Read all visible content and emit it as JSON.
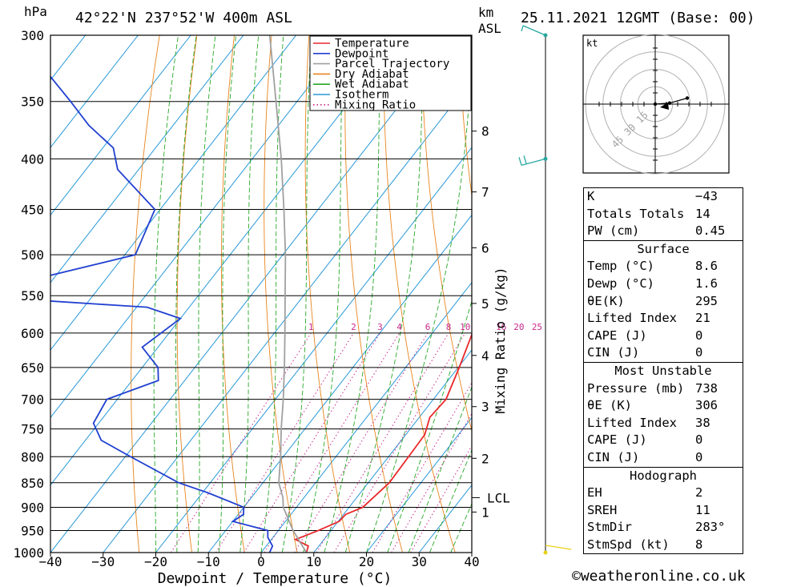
{
  "header": {
    "pressure_unit": "hPa",
    "location": "42°22'N  237°52'W  400m  ASL",
    "height_unit_km": "km",
    "height_unit_asl": "ASL",
    "datetime": "25.11.2021  12GMT  (Base: 00)"
  },
  "chart_data": {
    "type": "line",
    "title": "42°22'N  237°52'W  400m  ASL",
    "xlabel": "Dewpoint / Temperature (°C)",
    "ylabel": "hPa",
    "right_label": "Mixing Ratio (g/kg)",
    "xlim": [
      -40,
      40
    ],
    "ylim": [
      1000,
      300
    ],
    "x_ticks": [
      "-40",
      "-30",
      "-20",
      "-10",
      "0",
      "10",
      "20",
      "30",
      "40"
    ],
    "pressure_ticks": [
      "300",
      "350",
      "400",
      "450",
      "500",
      "550",
      "600",
      "650",
      "700",
      "750",
      "800",
      "850",
      "900",
      "950",
      "1000"
    ],
    "km_ticks": [
      {
        "p": 375,
        "label": "8"
      },
      {
        "p": 432,
        "label": "7"
      },
      {
        "p": 492,
        "label": "6"
      },
      {
        "p": 560,
        "label": "5"
      },
      {
        "p": 632,
        "label": "4"
      },
      {
        "p": 712,
        "label": "3"
      },
      {
        "p": 803,
        "label": "2"
      },
      {
        "p": 910,
        "label": "1"
      }
    ],
    "lcl": {
      "p": 880,
      "label": "LCL"
    },
    "mixing_ratio_labels": [
      "1",
      "2",
      "3",
      "4",
      "6",
      "8",
      "10",
      "16",
      "20",
      "25"
    ],
    "legend": [
      {
        "name": "Temperature",
        "color": "#e8282c",
        "style": "solid"
      },
      {
        "name": "Dewpoint",
        "color": "#2040d0",
        "style": "solid"
      },
      {
        "name": "Parcel Trajectory",
        "color": "#a0a0a0",
        "style": "solid"
      },
      {
        "name": "Dry Adiabat",
        "color": "#e8841c",
        "style": "solid"
      },
      {
        "name": "Wet Adiabat",
        "color": "#28a828",
        "style": "solid"
      },
      {
        "name": "Isotherm",
        "color": "#2898d8",
        "style": "solid"
      },
      {
        "name": "Mixing Ratio",
        "color": "#c8288c",
        "style": "dotted"
      }
    ],
    "series": [
      {
        "name": "Temperature",
        "color": "#e8282c",
        "points": [
          [
            1000,
            8.6
          ],
          [
            985,
            8.0
          ],
          [
            970,
            4.6
          ],
          [
            950,
            7.6
          ],
          [
            930,
            10.2
          ],
          [
            915,
            10.4
          ],
          [
            900,
            12.6
          ],
          [
            850,
            14.0
          ],
          [
            800,
            13.8
          ],
          [
            760,
            13.6
          ],
          [
            730,
            12.0
          ],
          [
            700,
            12.4
          ],
          [
            650,
            10.2
          ],
          [
            600,
            7.6
          ],
          [
            570,
            5.6
          ],
          [
            550,
            5.0
          ],
          [
            500,
            2.0
          ],
          [
            450,
            -4.0
          ],
          [
            400,
            -11.0
          ],
          [
            350,
            -19.5
          ],
          [
            300,
            -28.0
          ]
        ]
      },
      {
        "name": "Dewpoint",
        "color": "#2040d0",
        "points": [
          [
            1000,
            1.6
          ],
          [
            985,
            1.2
          ],
          [
            965,
            -1.0
          ],
          [
            950,
            -2.0
          ],
          [
            930,
            -10.0
          ],
          [
            915,
            -9.0
          ],
          [
            900,
            -10.0
          ],
          [
            870,
            -19.0
          ],
          [
            850,
            -26.0
          ],
          [
            800,
            -39.0
          ],
          [
            770,
            -47.0
          ],
          [
            740,
            -51.0
          ],
          [
            700,
            -52.0
          ],
          [
            670,
            -45.0
          ],
          [
            650,
            -47.0
          ],
          [
            620,
            -53.0
          ],
          [
            580,
            -50.0
          ],
          [
            565,
            -58.0
          ],
          [
            550,
            -94.0
          ],
          [
            500,
            -68.0
          ],
          [
            450,
            -71.0
          ],
          [
            410,
            -84.0
          ],
          [
            390,
            -88.0
          ],
          [
            370,
            -96.0
          ],
          [
            350,
            -103.0
          ],
          [
            300,
            -123.0
          ]
        ]
      },
      {
        "name": "Parcel Trajectory",
        "color": "#a0a0a0",
        "points": [
          [
            1000,
            8.6
          ],
          [
            950,
            2.8
          ],
          [
            900,
            -2.5
          ],
          [
            880,
            -4.0
          ],
          [
            850,
            -7.0
          ],
          [
            800,
            -10.5
          ],
          [
            750,
            -14.5
          ],
          [
            700,
            -18.5
          ],
          [
            650,
            -23.0
          ],
          [
            600,
            -28.0
          ],
          [
            550,
            -33.5
          ],
          [
            500,
            -39.5
          ],
          [
            450,
            -46.5
          ],
          [
            400,
            -54.5
          ],
          [
            350,
            -64.0
          ],
          [
            300,
            -75.0
          ]
        ]
      }
    ],
    "wind_barbs": [
      {
        "p": 300,
        "color": "#28a8a0"
      },
      {
        "p": 400,
        "color": "#28a8a0"
      },
      {
        "p": 1000,
        "color": "#e8d018"
      }
    ],
    "hodograph": {
      "unit": "kt",
      "ring_labels": [
        "15",
        "30",
        "45"
      ],
      "points": [
        [
          0,
          0
        ],
        [
          18,
          -2
        ],
        [
          40,
          -12
        ]
      ],
      "storm_motion": [
        12,
        2
      ]
    }
  },
  "indices": [
    {
      "label": "K",
      "value": "-43"
    },
    {
      "label": "Totals Totals",
      "value": "14"
    },
    {
      "label": "PW (cm)",
      "value": "0.45"
    }
  ],
  "surface": {
    "title": "Surface",
    "rows": [
      {
        "label": "Temp (°C)",
        "value": "8.6"
      },
      {
        "label": "Dewp (°C)",
        "value": "1.6"
      },
      {
        "label": "θE(K)",
        "value": "295"
      },
      {
        "label": "Lifted Index",
        "value": "21"
      },
      {
        "label": "CAPE (J)",
        "value": "0"
      },
      {
        "label": "CIN (J)",
        "value": "0"
      }
    ]
  },
  "most_unstable": {
    "title": "Most Unstable",
    "rows": [
      {
        "label": "Pressure (mb)",
        "value": "738"
      },
      {
        "label": "θE (K)",
        "value": "306"
      },
      {
        "label": "Lifted Index",
        "value": "38"
      },
      {
        "label": "CAPE (J)",
        "value": "0"
      },
      {
        "label": "CIN (J)",
        "value": "0"
      }
    ]
  },
  "hodograph_table": {
    "title": "Hodograph",
    "rows": [
      {
        "label": "EH",
        "value": "2"
      },
      {
        "label": "SREH",
        "value": "11"
      },
      {
        "label": "StmDir",
        "value": "283°"
      },
      {
        "label": "StmSpd (kt)",
        "value": "8"
      }
    ]
  },
  "footer": {
    "copyright": "©weatheronline.co.uk"
  }
}
